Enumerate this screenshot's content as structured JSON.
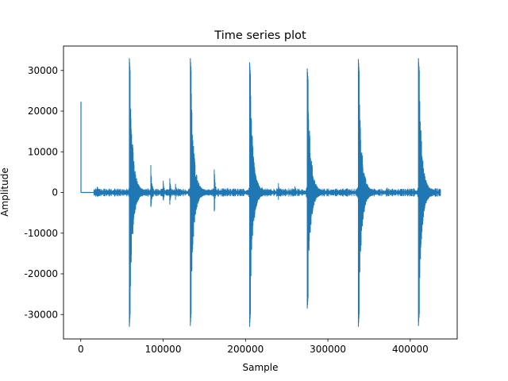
{
  "chart_data": {
    "type": "line",
    "title": "Time series plot",
    "xlabel": "Sample",
    "ylabel": "Amplitude",
    "xlim": [
      -21000,
      457000
    ],
    "ylim": [
      -36000,
      36000
    ],
    "x_ticks": [
      0,
      100000,
      200000,
      300000,
      400000
    ],
    "y_ticks": [
      -30000,
      -20000,
      -10000,
      0,
      10000,
      20000,
      30000
    ],
    "grid": false,
    "series": [
      {
        "color": "#1f77b4",
        "spike": {
          "x": 200,
          "y": 22300
        },
        "baseline": [
          0,
          16000
        ],
        "end_x": 437000,
        "bursts": [
          {
            "x": 59000,
            "max": 33000,
            "min": -33000
          },
          {
            "x": 133000,
            "max": 33000,
            "min": -32800
          },
          {
            "x": 205000,
            "max": 32000,
            "min": -33000
          },
          {
            "x": 275000,
            "max": 30500,
            "min": -28500
          },
          {
            "x": 337000,
            "max": 32800,
            "min": -33000
          },
          {
            "x": 410000,
            "max": 33000,
            "min": -32800
          }
        ],
        "minor_events": [
          {
            "x": 20000,
            "amp": 1800
          },
          {
            "x": 85000,
            "amp": 7500
          },
          {
            "x": 100000,
            "amp": 3000
          },
          {
            "x": 108000,
            "amp": 3500
          },
          {
            "x": 115000,
            "amp": 2800
          },
          {
            "x": 145000,
            "amp": 2500
          },
          {
            "x": 162000,
            "amp": 6500
          },
          {
            "x": 178000,
            "amp": 1500
          },
          {
            "x": 188000,
            "amp": 1200
          },
          {
            "x": 220000,
            "amp": 1500
          },
          {
            "x": 240000,
            "amp": 2600
          },
          {
            "x": 260000,
            "amp": 1800
          },
          {
            "x": 290000,
            "amp": 1200
          },
          {
            "x": 357000,
            "amp": 1000
          },
          {
            "x": 372000,
            "amp": 1200
          },
          {
            "x": 430000,
            "amp": 1500
          }
        ]
      }
    ]
  }
}
